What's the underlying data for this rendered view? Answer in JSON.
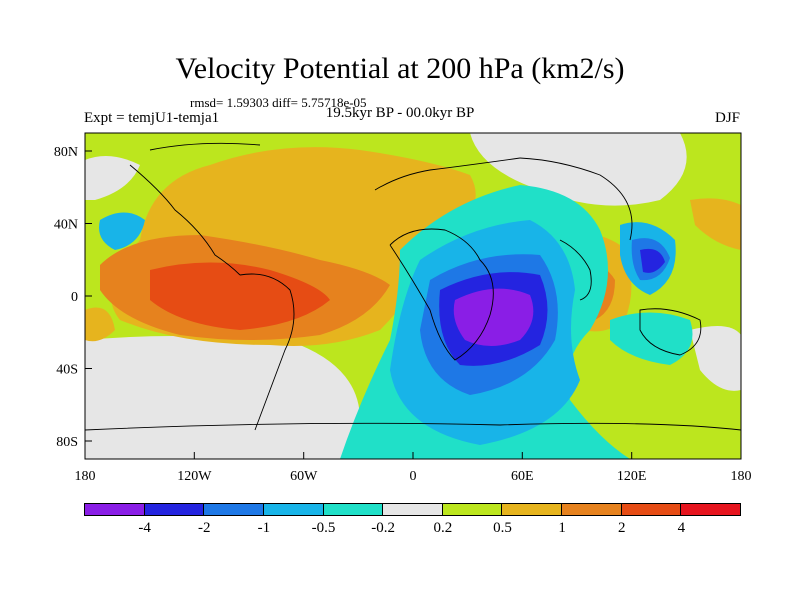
{
  "title": "Velocity Potential at 200 hPa (km2/s)",
  "stats": "rmsd= 1.59303 diff= 5.75718e-05",
  "experiment": "Expt = temjU1-temja1",
  "period": "19.5kyr BP - 00.0kyr BP",
  "season": "DJF",
  "x_ticks": [
    "180",
    "120W",
    "60W",
    "0",
    "60E",
    "120E",
    "180"
  ],
  "y_ticks": [
    "80N",
    "40N",
    "0",
    "40S",
    "80S"
  ],
  "colorbar": {
    "colors": [
      "#8a1ee6",
      "#2424e0",
      "#1e78e6",
      "#18b4e8",
      "#20e0c8",
      "#e6e6e6",
      "#bce61e",
      "#e6b41e",
      "#e6821e",
      "#e64c14",
      "#e6141e"
    ],
    "labels": [
      "-4",
      "-2",
      "-1",
      "-0.5",
      "-0.2",
      "0.2",
      "0.5",
      "1",
      "2",
      "4"
    ]
  }
}
